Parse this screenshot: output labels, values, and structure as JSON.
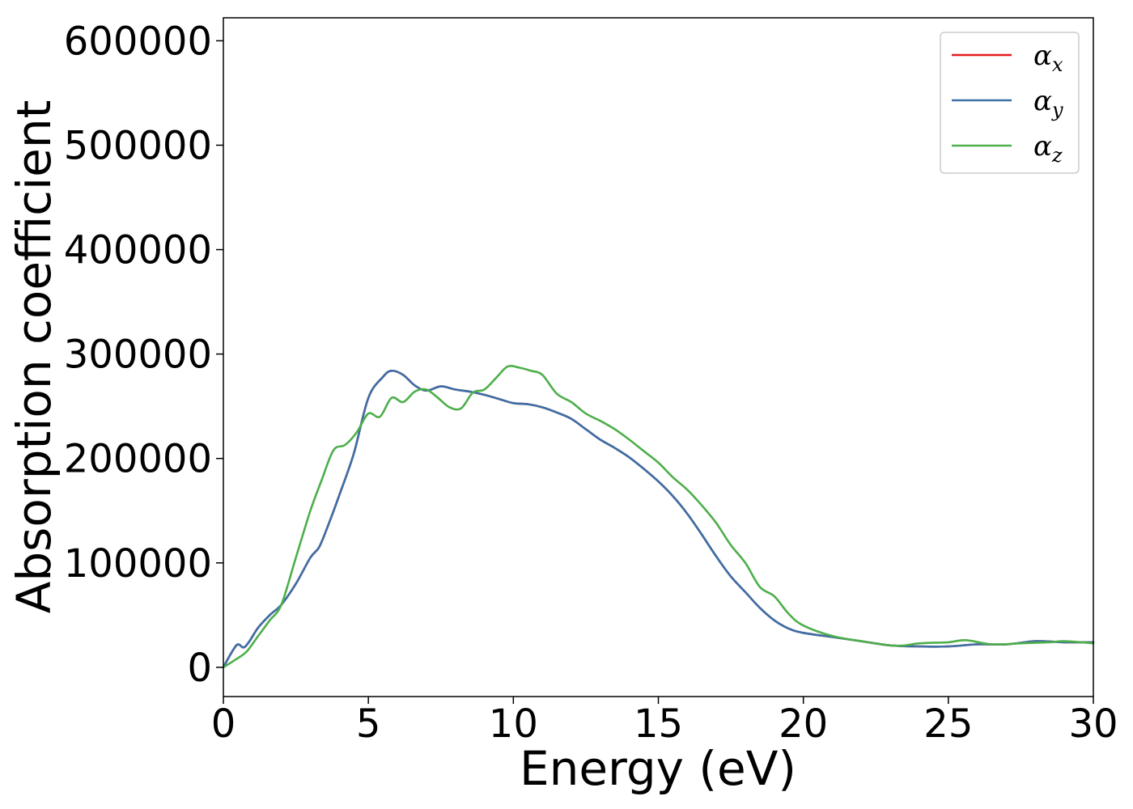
{
  "chart_data": {
    "type": "line",
    "title": "",
    "xlabel": "Energy (eV)",
    "ylabel": "Absorption coefficient",
    "xlim": [
      0,
      30
    ],
    "ylim": [
      -28000,
      622000
    ],
    "xticks": [
      0,
      5,
      10,
      15,
      20,
      25,
      30
    ],
    "xtick_labels": [
      "0",
      "5",
      "10",
      "15",
      "20",
      "25",
      "30"
    ],
    "yticks": [
      0,
      100000,
      200000,
      300000,
      400000,
      500000,
      600000
    ],
    "ytick_labels": [
      "0",
      "100000",
      "200000",
      "300000",
      "400000",
      "500000",
      "600000"
    ],
    "grid": false,
    "legend_position": "top-right",
    "series": [
      {
        "name": "α",
        "subscript": "x",
        "color": "#e41a1c",
        "x": [
          0,
          0.3,
          0.5,
          0.7,
          0.9,
          1.2,
          1.6,
          2.0,
          2.5,
          3.0,
          3.3,
          3.6,
          4.0,
          4.5,
          5.0,
          5.5,
          5.8,
          6.2,
          6.6,
          7.0,
          7.5,
          8.0,
          8.5,
          9.0,
          9.5,
          10.0,
          10.5,
          11.0,
          11.5,
          12.0,
          12.5,
          13.0,
          13.5,
          14.0,
          14.5,
          15.0,
          15.5,
          16.0,
          16.5,
          17.0,
          17.5,
          18.0,
          18.5,
          19.0,
          19.5,
          20.0,
          21.0,
          22.0,
          23.0,
          24.0,
          25.0,
          26.0,
          27.0,
          28.0,
          29.0,
          30.0
        ],
        "y": [
          0,
          15000,
          22000,
          19000,
          25000,
          38000,
          50000,
          60000,
          80000,
          105000,
          115000,
          135000,
          165000,
          205000,
          258000,
          278000,
          284000,
          280000,
          270000,
          265000,
          269000,
          266000,
          264000,
          261000,
          257000,
          253000,
          252000,
          249000,
          244000,
          238000,
          228000,
          218000,
          210000,
          201000,
          190000,
          178000,
          164000,
          147000,
          127000,
          106000,
          87000,
          72000,
          57000,
          45000,
          37000,
          33000,
          29000,
          25000,
          21000,
          20000,
          20000,
          22000,
          22000,
          25000,
          24000,
          24000
        ]
      },
      {
        "name": "α",
        "subscript": "y",
        "color": "#3a6fa8",
        "x": [
          0,
          0.3,
          0.5,
          0.7,
          0.9,
          1.2,
          1.6,
          2.0,
          2.5,
          3.0,
          3.3,
          3.6,
          4.0,
          4.5,
          5.0,
          5.5,
          5.8,
          6.2,
          6.6,
          7.0,
          7.5,
          8.0,
          8.5,
          9.0,
          9.5,
          10.0,
          10.5,
          11.0,
          11.5,
          12.0,
          12.5,
          13.0,
          13.5,
          14.0,
          14.5,
          15.0,
          15.5,
          16.0,
          16.5,
          17.0,
          17.5,
          18.0,
          18.5,
          19.0,
          19.5,
          20.0,
          21.0,
          22.0,
          23.0,
          24.0,
          25.0,
          26.0,
          27.0,
          28.0,
          29.0,
          30.0
        ],
        "y": [
          0,
          15000,
          22000,
          19000,
          25000,
          38000,
          50000,
          60000,
          80000,
          105000,
          115000,
          135000,
          165000,
          205000,
          258000,
          278000,
          284000,
          280000,
          270000,
          265000,
          269000,
          266000,
          264000,
          261000,
          257000,
          253000,
          252000,
          249000,
          244000,
          238000,
          228000,
          218000,
          210000,
          201000,
          190000,
          178000,
          164000,
          147000,
          127000,
          106000,
          87000,
          72000,
          57000,
          45000,
          37000,
          33000,
          29000,
          25000,
          21000,
          20000,
          20000,
          22000,
          22000,
          25000,
          24000,
          24000
        ]
      },
      {
        "name": "α",
        "subscript": "z",
        "color": "#4daf4a",
        "x": [
          0,
          0.4,
          0.8,
          1.2,
          1.6,
          2.0,
          2.5,
          3.0,
          3.4,
          3.8,
          4.2,
          4.6,
          5.0,
          5.4,
          5.8,
          6.2,
          6.6,
          7.0,
          7.4,
          7.8,
          8.2,
          8.6,
          9.0,
          9.4,
          9.8,
          10.2,
          10.6,
          11.0,
          11.5,
          12.0,
          12.5,
          13.0,
          13.5,
          14.0,
          14.5,
          15.0,
          15.5,
          16.0,
          16.5,
          17.0,
          17.5,
          18.0,
          18.5,
          19.0,
          19.5,
          20.0,
          21.0,
          22.0,
          23.0,
          23.5,
          24.0,
          25.0,
          25.6,
          26.5,
          27.5,
          28.5,
          29.0,
          30.0
        ],
        "y": [
          0,
          7000,
          15000,
          30000,
          45000,
          60000,
          105000,
          150000,
          180000,
          208000,
          213000,
          225000,
          243000,
          240000,
          258000,
          254000,
          264000,
          266000,
          258000,
          249000,
          248000,
          263000,
          266000,
          277000,
          288000,
          287000,
          284000,
          280000,
          262000,
          254000,
          243000,
          236000,
          228000,
          218000,
          207000,
          196000,
          182000,
          170000,
          155000,
          138000,
          117000,
          100000,
          77000,
          68000,
          51000,
          40000,
          30000,
          25000,
          21000,
          21000,
          23000,
          24000,
          26000,
          22000,
          23000,
          24000,
          25000,
          23000
        ]
      }
    ]
  }
}
